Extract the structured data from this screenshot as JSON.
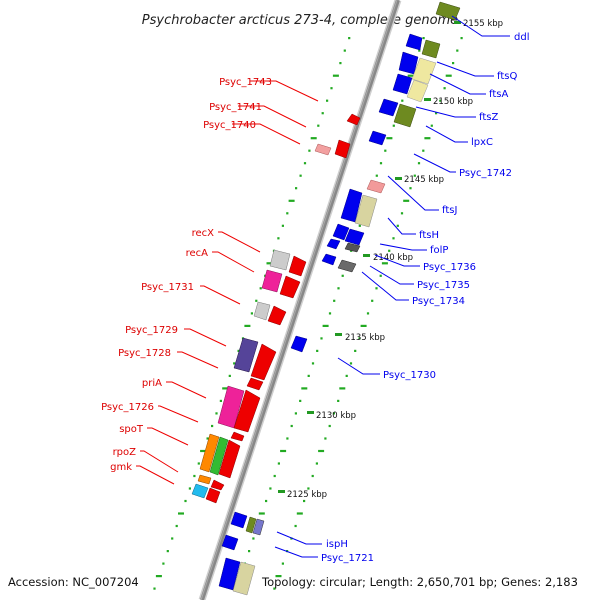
{
  "title": "Psychrobacter arcticus 273-4, complete genome",
  "footer": {
    "accession": "Accession: NC_007204",
    "topology": "Topology: circular; Length: 2,650,701 bp; Genes: 2,183"
  },
  "ticks": [
    "2155 kbp",
    "2150 kbp",
    "2145 kbp",
    "2140 kbp",
    "2135 kbp",
    "2130 kbp",
    "2125 kbp"
  ],
  "left_labels": [
    "Psyc_1743",
    "Psyc_1741",
    "Psyc_1740",
    "recX",
    "recA",
    "Psyc_1731",
    "Psyc_1729",
    "Psyc_1728",
    "priA",
    "Psyc_1726",
    "spoT",
    "rpoZ",
    "gmk"
  ],
  "right_labels": [
    "ddl",
    "ftsQ",
    "ftsA",
    "ftsZ",
    "lpxC",
    "Psyc_1742",
    "ftsJ",
    "ftsH",
    "folP",
    "Psyc_1736",
    "Psyc_1735",
    "Psyc_1734",
    "Psyc_1730",
    "ispH",
    "Psyc_1721"
  ],
  "colors": {
    "forward_strand": "#ee0000",
    "reverse_strand": "#0000ee",
    "axis": "#888888",
    "dots": "#22aa22"
  }
}
